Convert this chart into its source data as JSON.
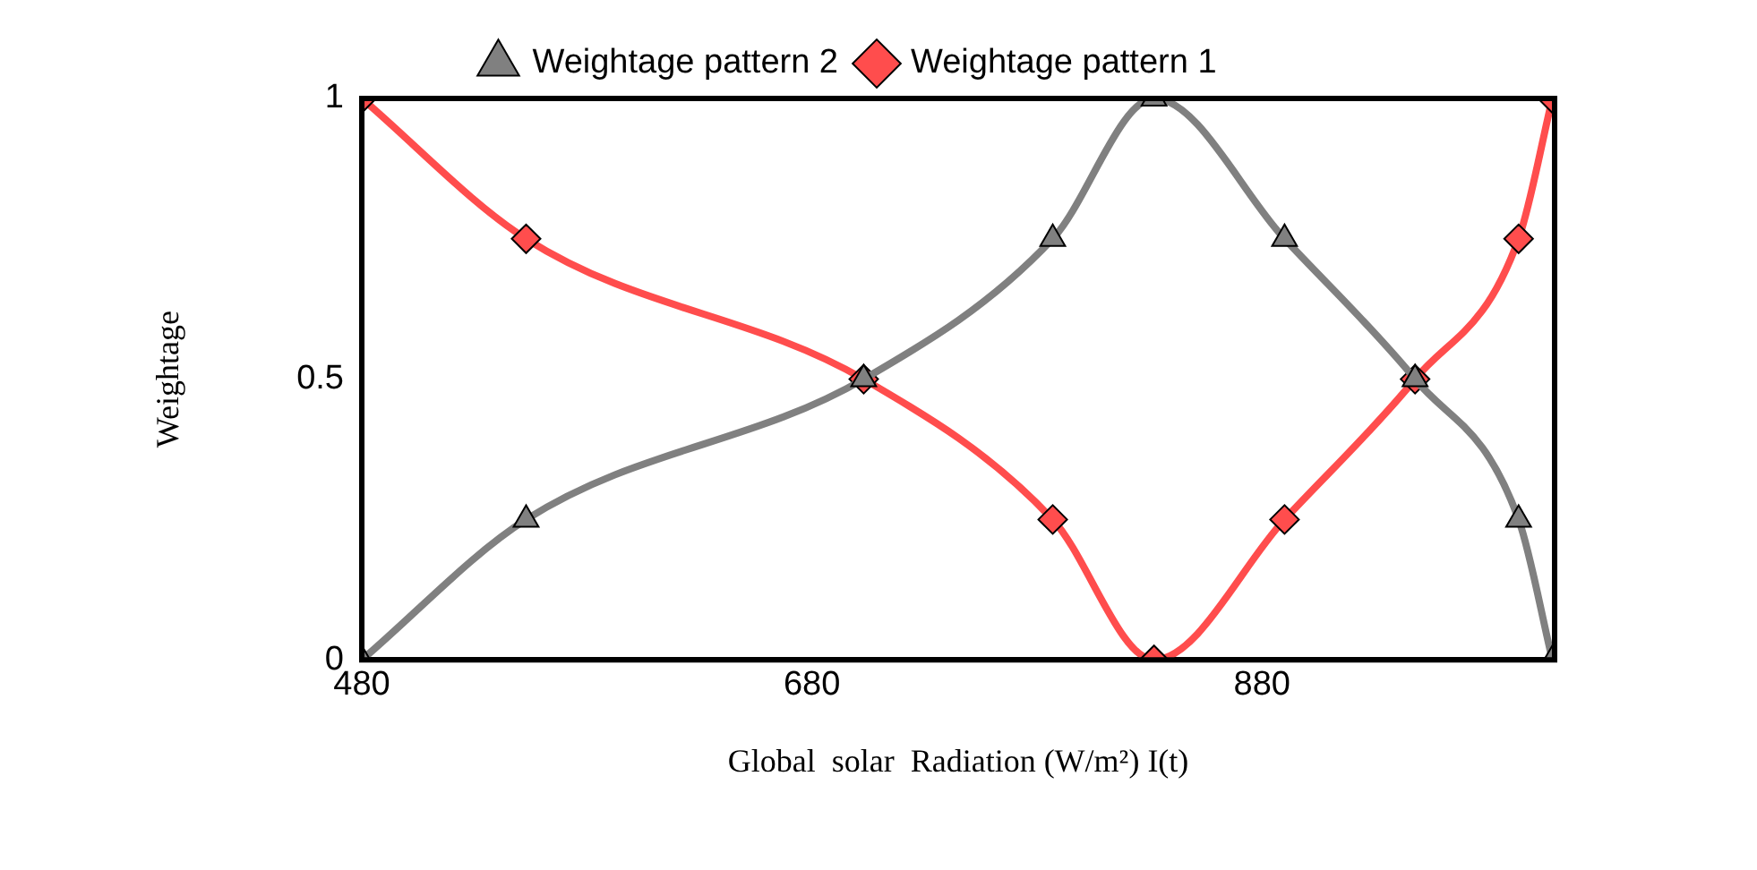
{
  "chart_data": {
    "type": "line",
    "xlabel": "Global  solar  Radiation (W/m²) I(t)",
    "ylabel": "Weightage",
    "x": [
      480,
      553,
      703,
      787,
      832,
      890,
      948,
      994,
      1009
    ],
    "series": [
      {
        "name": "Weightage pattern 1",
        "color": "#ff4d4d",
        "marker": "diamond",
        "values": [
          1,
          0.75,
          0.5,
          0.25,
          0,
          0.25,
          0.5,
          0.75,
          1
        ]
      },
      {
        "name": "Weightage pattern 2",
        "color": "#808080",
        "marker": "triangle",
        "values": [
          0,
          0.25,
          0.5,
          0.75,
          1,
          0.75,
          0.5,
          0.25,
          0
        ]
      }
    ],
    "xlim": [
      480,
      1010
    ],
    "xticks": [
      480,
      680,
      880
    ],
    "ylim": [
      0,
      1
    ],
    "yticks": [
      0,
      0.5,
      1
    ],
    "grid": false,
    "legend": "top",
    "line_style": "solid"
  }
}
